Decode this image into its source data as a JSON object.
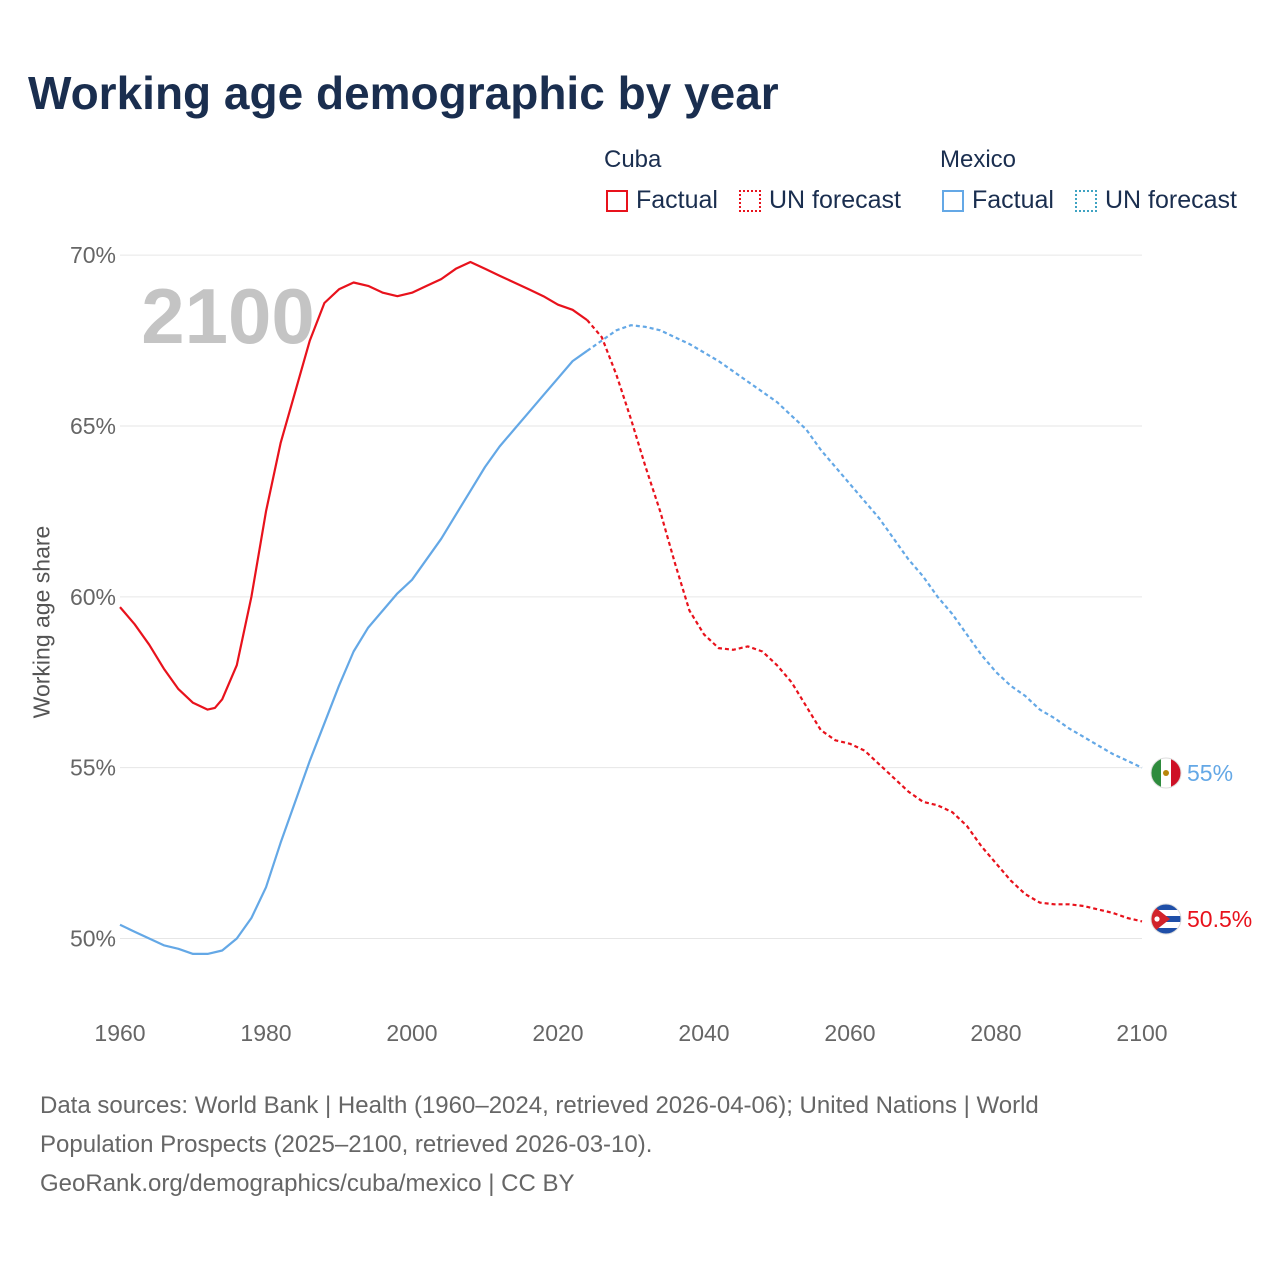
{
  "title": "Working age demographic by year",
  "legend": {
    "groups": [
      {
        "name": "Cuba",
        "color": "#e8121c",
        "items": [
          {
            "label": "Factual",
            "style": "solid"
          },
          {
            "label": "UN forecast",
            "style": "dotted"
          }
        ]
      },
      {
        "name": "Mexico",
        "color": "#64a8e6",
        "items": [
          {
            "label": "Factual",
            "style": "solid"
          },
          {
            "label": "UN forecast",
            "style": "dotted"
          }
        ]
      }
    ]
  },
  "footer": {
    "line1": "Data sources: World Bank | Health (1960–2024, retrieved 2026-04-06); United Nations | World",
    "line2": "Population Prospects (2025–2100, retrieved 2026-03-10).",
    "line3": "GeoRank.org/demographics/cuba/mexico | CC BY"
  },
  "chart_data": {
    "type": "line",
    "title": "Working age demographic by year",
    "xlabel": "",
    "ylabel": "Working age share",
    "xlim": [
      1960,
      2100
    ],
    "ylim": [
      48.2,
      71
    ],
    "x_ticks": [
      1960,
      1980,
      2000,
      2020,
      2040,
      2060,
      2080,
      2100
    ],
    "y_ticks": [
      50,
      55,
      60,
      65,
      70
    ],
    "y_tick_suffix": "%",
    "grid": true,
    "year_watermark": "2100",
    "factual_end_year": 2024,
    "series": [
      {
        "name": "Cuba",
        "color": "#e8121c",
        "end_label": "50.5%",
        "flag_icon": "cuba-flag-icon",
        "points": [
          [
            1960,
            59.7
          ],
          [
            1962,
            59.2
          ],
          [
            1964,
            58.6
          ],
          [
            1966,
            57.9
          ],
          [
            1968,
            57.3
          ],
          [
            1970,
            56.9
          ],
          [
            1972,
            56.7
          ],
          [
            1973,
            56.75
          ],
          [
            1974,
            57.0
          ],
          [
            1976,
            58.0
          ],
          [
            1978,
            60.0
          ],
          [
            1980,
            62.5
          ],
          [
            1982,
            64.5
          ],
          [
            1984,
            66.0
          ],
          [
            1986,
            67.5
          ],
          [
            1988,
            68.6
          ],
          [
            1990,
            69.0
          ],
          [
            1992,
            69.2
          ],
          [
            1994,
            69.1
          ],
          [
            1996,
            68.9
          ],
          [
            1998,
            68.8
          ],
          [
            2000,
            68.9
          ],
          [
            2002,
            69.1
          ],
          [
            2004,
            69.3
          ],
          [
            2006,
            69.6
          ],
          [
            2008,
            69.8
          ],
          [
            2010,
            69.6
          ],
          [
            2012,
            69.4
          ],
          [
            2014,
            69.2
          ],
          [
            2016,
            69.0
          ],
          [
            2018,
            68.8
          ],
          [
            2020,
            68.55
          ],
          [
            2022,
            68.4
          ],
          [
            2024,
            68.1
          ],
          [
            2026,
            67.6
          ],
          [
            2028,
            66.5
          ],
          [
            2030,
            65.2
          ],
          [
            2032,
            63.8
          ],
          [
            2034,
            62.5
          ],
          [
            2036,
            61.0
          ],
          [
            2038,
            59.6
          ],
          [
            2040,
            58.9
          ],
          [
            2042,
            58.5
          ],
          [
            2044,
            58.45
          ],
          [
            2046,
            58.55
          ],
          [
            2048,
            58.4
          ],
          [
            2050,
            58.0
          ],
          [
            2052,
            57.5
          ],
          [
            2054,
            56.8
          ],
          [
            2056,
            56.1
          ],
          [
            2058,
            55.8
          ],
          [
            2060,
            55.7
          ],
          [
            2062,
            55.5
          ],
          [
            2064,
            55.1
          ],
          [
            2066,
            54.7
          ],
          [
            2068,
            54.3
          ],
          [
            2070,
            54.0
          ],
          [
            2072,
            53.9
          ],
          [
            2074,
            53.7
          ],
          [
            2076,
            53.3
          ],
          [
            2078,
            52.7
          ],
          [
            2080,
            52.2
          ],
          [
            2082,
            51.7
          ],
          [
            2084,
            51.3
          ],
          [
            2086,
            51.05
          ],
          [
            2088,
            51.0
          ],
          [
            2090,
            51.0
          ],
          [
            2092,
            50.95
          ],
          [
            2094,
            50.85
          ],
          [
            2096,
            50.75
          ],
          [
            2098,
            50.6
          ],
          [
            2100,
            50.5
          ]
        ]
      },
      {
        "name": "Mexico",
        "color": "#64a8e6",
        "end_label": "55%",
        "flag_icon": "mexico-flag-icon",
        "points": [
          [
            1960,
            50.4
          ],
          [
            1962,
            50.2
          ],
          [
            1964,
            50.0
          ],
          [
            1966,
            49.8
          ],
          [
            1968,
            49.7
          ],
          [
            1970,
            49.55
          ],
          [
            1972,
            49.55
          ],
          [
            1974,
            49.65
          ],
          [
            1976,
            50.0
          ],
          [
            1978,
            50.6
          ],
          [
            1980,
            51.5
          ],
          [
            1982,
            52.8
          ],
          [
            1984,
            54.0
          ],
          [
            1986,
            55.2
          ],
          [
            1988,
            56.3
          ],
          [
            1990,
            57.4
          ],
          [
            1992,
            58.4
          ],
          [
            1994,
            59.1
          ],
          [
            1996,
            59.6
          ],
          [
            1998,
            60.1
          ],
          [
            2000,
            60.5
          ],
          [
            2002,
            61.1
          ],
          [
            2004,
            61.7
          ],
          [
            2006,
            62.4
          ],
          [
            2008,
            63.1
          ],
          [
            2010,
            63.8
          ],
          [
            2012,
            64.4
          ],
          [
            2014,
            64.9
          ],
          [
            2016,
            65.4
          ],
          [
            2018,
            65.9
          ],
          [
            2020,
            66.4
          ],
          [
            2022,
            66.9
          ],
          [
            2024,
            67.2
          ],
          [
            2026,
            67.5
          ],
          [
            2028,
            67.8
          ],
          [
            2030,
            67.95
          ],
          [
            2032,
            67.9
          ],
          [
            2034,
            67.8
          ],
          [
            2036,
            67.6
          ],
          [
            2038,
            67.4
          ],
          [
            2040,
            67.15
          ],
          [
            2042,
            66.9
          ],
          [
            2044,
            66.6
          ],
          [
            2046,
            66.3
          ],
          [
            2048,
            66.0
          ],
          [
            2050,
            65.7
          ],
          [
            2052,
            65.3
          ],
          [
            2054,
            64.9
          ],
          [
            2056,
            64.3
          ],
          [
            2058,
            63.8
          ],
          [
            2060,
            63.3
          ],
          [
            2062,
            62.8
          ],
          [
            2064,
            62.3
          ],
          [
            2066,
            61.7
          ],
          [
            2068,
            61.1
          ],
          [
            2070,
            60.6
          ],
          [
            2072,
            60.0
          ],
          [
            2074,
            59.5
          ],
          [
            2076,
            58.9
          ],
          [
            2078,
            58.3
          ],
          [
            2080,
            57.8
          ],
          [
            2082,
            57.4
          ],
          [
            2084,
            57.1
          ],
          [
            2086,
            56.7
          ],
          [
            2088,
            56.45
          ],
          [
            2090,
            56.15
          ],
          [
            2092,
            55.9
          ],
          [
            2094,
            55.65
          ],
          [
            2096,
            55.4
          ],
          [
            2098,
            55.2
          ],
          [
            2100,
            55.0
          ]
        ]
      }
    ]
  }
}
